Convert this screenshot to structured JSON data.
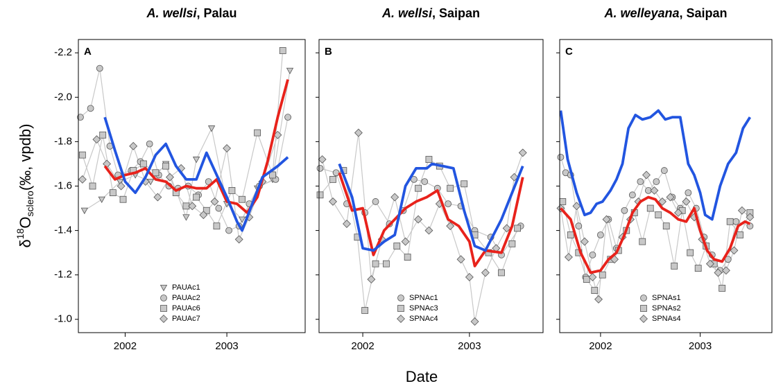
{
  "y_label": [
    "δ",
    "18",
    "O",
    "sclero",
    "(‰, vpdb)"
  ],
  "x_label": "Date",
  "chart_data": [
    {
      "type": "line",
      "title": [
        "A. wellsi",
        ", Palau"
      ],
      "panel_label": "A",
      "xlim": [
        2001.54,
        2003.77
      ],
      "ylim": [
        -0.94,
        -2.26
      ],
      "xticks": [
        2002,
        2003
      ],
      "yticks": [
        -2.2,
        {
          "value": -2,
          "label": "-2.0"
        },
        -1.8,
        -1.6,
        -1.4,
        -1.2,
        {
          "value": -1,
          "label": "-1.0"
        }
      ],
      "ytick_labels": true,
      "legend": "lower center",
      "series": [
        {
          "name": "PAUAc1",
          "marker": "triangle",
          "color": "#c8c8c8",
          "x": [
            2001.6,
            2001.77,
            2001.95,
            2002.1,
            2002.25,
            2002.4,
            2002.6,
            2002.7,
            2002.85,
            2003.0,
            2003.15,
            2003.3,
            2003.45,
            2003.62
          ],
          "values": [
            -1.49,
            -1.54,
            -1.62,
            -1.65,
            -1.62,
            -1.7,
            -1.46,
            -1.72,
            -1.86,
            -1.52,
            -1.45,
            -1.59,
            -1.63,
            -2.12
          ]
        },
        {
          "name": "PAUAc2",
          "marker": "circle",
          "color": "#c8c8c8",
          "x": [
            2001.56,
            2001.66,
            2001.75,
            2001.85,
            2001.93,
            2002.06,
            2002.15,
            2002.24,
            2002.33,
            2002.43,
            2002.52,
            2002.62,
            2002.72,
            2002.82,
            2002.92,
            2003.02,
            2003.12,
            2003.22,
            2003.32,
            2003.48,
            2003.6
          ],
          "values": [
            -1.91,
            -1.95,
            -2.13,
            -1.78,
            -1.65,
            -1.67,
            -1.71,
            -1.79,
            -1.65,
            -1.6,
            -1.59,
            -1.6,
            -1.56,
            -1.62,
            -1.5,
            -1.4,
            -1.42,
            -1.52,
            -1.6,
            -1.63,
            -1.91
          ]
        },
        {
          "name": "PAUAc6",
          "marker": "square",
          "color": "#c8c8c8",
          "x": [
            2001.58,
            2001.68,
            2001.78,
            2001.88,
            2001.98,
            2002.08,
            2002.18,
            2002.3,
            2002.4,
            2002.5,
            2002.6,
            2002.7,
            2002.8,
            2002.9,
            2003.05,
            2003.15,
            2003.3,
            2003.45,
            2003.55
          ],
          "values": [
            -1.74,
            -1.6,
            -1.83,
            -1.57,
            -1.54,
            -1.67,
            -1.7,
            -1.66,
            -1.69,
            -1.57,
            -1.51,
            -1.55,
            -1.49,
            -1.42,
            -1.58,
            -1.54,
            -1.84,
            -1.65,
            -2.21
          ]
        },
        {
          "name": "PAUAc7",
          "marker": "diamond",
          "color": "#c8c8c8",
          "x": [
            2001.58,
            2001.72,
            2001.82,
            2001.96,
            2002.08,
            2002.2,
            2002.32,
            2002.44,
            2002.55,
            2002.66,
            2002.77,
            2002.88,
            2003.0,
            2003.12,
            2003.22,
            2003.35,
            2003.5
          ],
          "values": [
            -1.63,
            -1.81,
            -1.7,
            -1.6,
            -1.78,
            -1.62,
            -1.55,
            -1.64,
            -1.68,
            -1.51,
            -1.47,
            -1.53,
            -1.77,
            -1.36,
            -1.46,
            -1.62,
            -1.83
          ]
        }
      ],
      "lines": [
        {
          "color": "#e8221b",
          "x": [
            2001.8,
            2001.9,
            2002.0,
            2002.1,
            2002.2,
            2002.3,
            2002.4,
            2002.5,
            2002.6,
            2002.7,
            2002.8,
            2002.9,
            2003.0,
            2003.1,
            2003.2,
            2003.3,
            2003.4,
            2003.5,
            2003.6
          ],
          "values": [
            -1.69,
            -1.63,
            -1.65,
            -1.66,
            -1.68,
            -1.63,
            -1.62,
            -1.58,
            -1.6,
            -1.59,
            -1.59,
            -1.63,
            -1.53,
            -1.52,
            -1.48,
            -1.55,
            -1.71,
            -1.91,
            -2.08
          ]
        },
        {
          "color": "#2255e0",
          "x": [
            2001.8,
            2001.9,
            2002.0,
            2002.1,
            2002.2,
            2002.3,
            2002.4,
            2002.5,
            2002.6,
            2002.7,
            2002.8,
            2002.9,
            2003.0,
            2003.1,
            2003.15,
            2003.25,
            2003.35,
            2003.5,
            2003.6
          ],
          "values": [
            -1.91,
            -1.76,
            -1.62,
            -1.57,
            -1.64,
            -1.74,
            -1.79,
            -1.69,
            -1.63,
            -1.63,
            -1.75,
            -1.65,
            -1.55,
            -1.44,
            -1.4,
            -1.52,
            -1.64,
            -1.69,
            -1.73
          ]
        }
      ]
    },
    {
      "type": "line",
      "title": [
        "A. wellsi",
        ", Saipan"
      ],
      "panel_label": "B",
      "xlim": [
        2001.59,
        2003.69
      ],
      "ylim": [
        -0.94,
        -2.26
      ],
      "xticks": [
        2002,
        2003
      ],
      "yticks": [
        -2.2,
        {
          "value": -2,
          "label": "-2.0"
        },
        -1.8,
        -1.6,
        -1.4,
        -1.2,
        {
          "value": -1,
          "label": "-1.0"
        }
      ],
      "ytick_labels": false,
      "legend": "lower center",
      "series": [
        {
          "name": "SPNAc1",
          "marker": "circle",
          "color": "#c8c8c8",
          "x": [
            2001.6,
            2001.75,
            2001.85,
            2002.02,
            2002.12,
            2002.25,
            2002.38,
            2002.48,
            2002.58,
            2002.7,
            2002.8,
            2002.92,
            2003.05,
            2003.2,
            2003.3,
            2003.48
          ],
          "values": [
            -1.68,
            -1.66,
            -1.52,
            -1.48,
            -1.53,
            -1.43,
            -1.49,
            -1.63,
            -1.62,
            -1.59,
            -1.52,
            -1.51,
            -1.4,
            -1.37,
            -1.29,
            -1.42
          ]
        },
        {
          "name": "SPNAc3",
          "marker": "square",
          "color": "#c8c8c8",
          "x": [
            2001.6,
            2001.72,
            2001.82,
            2001.95,
            2002.02,
            2002.12,
            2002.22,
            2002.32,
            2002.42,
            2002.52,
            2002.62,
            2002.72,
            2002.82,
            2002.95,
            2003.05,
            2003.18,
            2003.3,
            2003.4,
            2003.45
          ],
          "values": [
            -1.56,
            -1.63,
            -1.67,
            -1.37,
            -1.04,
            -1.25,
            -1.25,
            -1.33,
            -1.28,
            -1.59,
            -1.72,
            -1.69,
            -1.59,
            -1.61,
            -1.38,
            -1.3,
            -1.21,
            -1.34,
            -1.41
          ]
        },
        {
          "name": "SPNAc4",
          "marker": "diamond",
          "color": "#c8c8c8",
          "x": [
            2001.62,
            2001.72,
            2001.85,
            2001.96,
            2002.08,
            2002.18,
            2002.3,
            2002.4,
            2002.52,
            2002.62,
            2002.72,
            2002.82,
            2002.92,
            2003.0,
            2003.05,
            2003.15,
            2003.25,
            2003.35,
            2003.42,
            2003.5
          ],
          "values": [
            -1.72,
            -1.53,
            -1.43,
            -1.84,
            -1.18,
            -1.36,
            -1.55,
            -1.35,
            -1.45,
            -1.4,
            -1.52,
            -1.42,
            -1.27,
            -1.19,
            -0.99,
            -1.21,
            -1.32,
            -1.41,
            -1.64,
            -1.75
          ]
        }
      ],
      "lines": [
        {
          "color": "#e8221b",
          "x": [
            2001.78,
            2001.9,
            2002.0,
            2002.1,
            2002.2,
            2002.3,
            2002.4,
            2002.5,
            2002.6,
            2002.7,
            2002.8,
            2002.9,
            2003.0,
            2003.05,
            2003.15,
            2003.3,
            2003.4,
            2003.5
          ],
          "values": [
            -1.66,
            -1.49,
            -1.5,
            -1.29,
            -1.4,
            -1.45,
            -1.5,
            -1.53,
            -1.55,
            -1.58,
            -1.45,
            -1.42,
            -1.35,
            -1.24,
            -1.31,
            -1.3,
            -1.42,
            -1.64
          ]
        },
        {
          "color": "#2255e0",
          "x": [
            2001.78,
            2001.9,
            2002.0,
            2002.1,
            2002.2,
            2002.3,
            2002.4,
            2002.5,
            2002.6,
            2002.65,
            2002.75,
            2002.85,
            2002.95,
            2003.05,
            2003.15,
            2003.3,
            2003.4,
            2003.5
          ],
          "values": [
            -1.7,
            -1.55,
            -1.32,
            -1.31,
            -1.35,
            -1.38,
            -1.6,
            -1.68,
            -1.68,
            -1.7,
            -1.69,
            -1.68,
            -1.49,
            -1.33,
            -1.31,
            -1.45,
            -1.57,
            -1.69
          ]
        }
      ]
    },
    {
      "type": "line",
      "title": [
        "A. welleyana",
        ", Saipan"
      ],
      "panel_label": "C",
      "xlim": [
        2001.59,
        2003.72
      ],
      "ylim": [
        -0.94,
        -2.26
      ],
      "xticks": [
        2002,
        2003
      ],
      "yticks": [
        -2.2,
        {
          "value": -2,
          "label": "-2.0"
        },
        -1.8,
        -1.6,
        -1.4,
        -1.2,
        {
          "value": -1,
          "label": "-1.0"
        }
      ],
      "ytick_labels": false,
      "legend": "lower center",
      "series": [
        {
          "name": "SPNAs1",
          "marker": "circle",
          "color": "#c8c8c8",
          "x": [
            2001.6,
            2001.65,
            2001.7,
            2001.78,
            2001.85,
            2001.92,
            2002.0,
            2002.08,
            2002.16,
            2002.24,
            2002.32,
            2002.4,
            2002.48,
            2002.56,
            2002.64,
            2002.72,
            2002.8,
            2002.88,
            2002.96,
            2003.04,
            2003.12,
            2003.2,
            2003.28,
            2003.36,
            2003.5
          ],
          "values": [
            -1.73,
            -1.66,
            -1.65,
            -1.42,
            -1.19,
            -1.29,
            -1.38,
            -1.45,
            -1.32,
            -1.49,
            -1.56,
            -1.62,
            -1.58,
            -1.62,
            -1.67,
            -1.55,
            -1.5,
            -1.57,
            -1.5,
            -1.37,
            -1.29,
            -1.22,
            -1.27,
            -1.44,
            -1.42
          ]
        },
        {
          "name": "SPNAs2",
          "marker": "square",
          "color": "#c8c8c8",
          "x": [
            2001.62,
            2001.7,
            2001.78,
            2001.86,
            2001.94,
            2002.02,
            2002.1,
            2002.18,
            2002.26,
            2002.34,
            2002.42,
            2002.5,
            2002.58,
            2002.66,
            2002.74,
            2002.82,
            2002.9,
            2002.98,
            2003.06,
            2003.14,
            2003.22,
            2003.3,
            2003.4,
            2003.5
          ],
          "values": [
            -1.53,
            -1.38,
            -1.3,
            -1.18,
            -1.13,
            -1.2,
            -1.27,
            -1.31,
            -1.4,
            -1.48,
            -1.35,
            -1.5,
            -1.47,
            -1.42,
            -1.24,
            -1.49,
            -1.3,
            -1.23,
            -1.33,
            -1.25,
            -1.14,
            -1.44,
            -1.38,
            -1.48
          ]
        },
        {
          "name": "SPNAs4",
          "marker": "diamond",
          "color": "#c8c8c8",
          "x": [
            2001.6,
            2001.68,
            2001.76,
            2001.84,
            2001.92,
            2001.98,
            2002.06,
            2002.14,
            2002.22,
            2002.3,
            2002.38,
            2002.46,
            2002.54,
            2002.62,
            2002.7,
            2002.78,
            2002.86,
            2002.94,
            2003.02,
            2003.1,
            2003.18,
            2003.26,
            2003.34,
            2003.42,
            2003.5
          ],
          "values": [
            -1.5,
            -1.28,
            -1.51,
            -1.35,
            -1.19,
            -1.09,
            -1.45,
            -1.27,
            -1.37,
            -1.45,
            -1.53,
            -1.65,
            -1.58,
            -1.53,
            -1.55,
            -1.48,
            -1.53,
            -1.46,
            -1.36,
            -1.25,
            -1.21,
            -1.22,
            -1.31,
            -1.49,
            -1.46
          ]
        }
      ],
      "lines": [
        {
          "color": "#e8221b",
          "x": [
            2001.6,
            2001.7,
            2001.8,
            2001.9,
            2002.0,
            2002.08,
            2002.16,
            2002.24,
            2002.32,
            2002.4,
            2002.48,
            2002.55,
            2002.62,
            2002.7,
            2002.78,
            2002.86,
            2002.94,
            2003.0,
            2003.07,
            2003.14,
            2003.22,
            2003.3,
            2003.38,
            2003.45,
            2003.5
          ],
          "values": [
            -1.5,
            -1.45,
            -1.3,
            -1.21,
            -1.22,
            -1.27,
            -1.3,
            -1.38,
            -1.48,
            -1.53,
            -1.55,
            -1.54,
            -1.5,
            -1.48,
            -1.45,
            -1.44,
            -1.5,
            -1.4,
            -1.31,
            -1.27,
            -1.26,
            -1.32,
            -1.42,
            -1.44,
            -1.43
          ]
        },
        {
          "color": "#2255e0",
          "x": [
            2001.6,
            2001.67,
            2001.76,
            2001.84,
            2001.9,
            2001.96,
            2002.02,
            2002.1,
            2002.16,
            2002.22,
            2002.28,
            2002.35,
            2002.42,
            2002.5,
            2002.58,
            2002.65,
            2002.72,
            2002.8,
            2002.88,
            2002.94,
            2003.0,
            2003.05,
            2003.12,
            2003.2,
            2003.28,
            2003.36,
            2003.43,
            2003.5
          ],
          "values": [
            -1.94,
            -1.72,
            -1.57,
            -1.47,
            -1.48,
            -1.52,
            -1.53,
            -1.58,
            -1.63,
            -1.7,
            -1.86,
            -1.92,
            -1.9,
            -1.91,
            -1.94,
            -1.9,
            -1.91,
            -1.91,
            -1.7,
            -1.65,
            -1.57,
            -1.47,
            -1.45,
            -1.6,
            -1.7,
            -1.75,
            -1.86,
            -1.91
          ]
        }
      ]
    }
  ]
}
